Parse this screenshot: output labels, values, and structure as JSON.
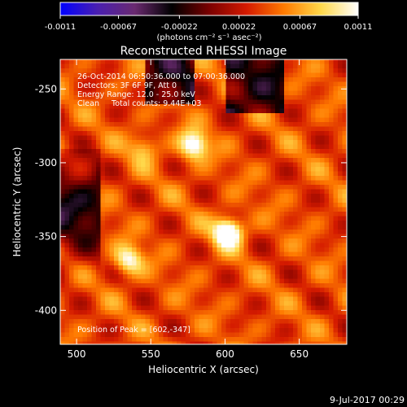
{
  "chart_data": {
    "type": "heatmap",
    "title": "Reconstructed RHESSI Image",
    "xlabel": "Heliocentric X (arcsec)",
    "ylabel": "Heliocentric Y (arcsec)",
    "xlim": [
      489,
      682
    ],
    "ylim": [
      -423,
      -230
    ],
    "x_ticks": [
      500,
      550,
      600,
      650
    ],
    "y_ticks": [
      -250,
      -300,
      -350,
      -400
    ],
    "colorbar": {
      "colors": [
        "#0000ff",
        "#4a1fb0",
        "#6a2a70",
        "#000000",
        "#7a0000",
        "#d41a00",
        "#ff7a00",
        "#ffd84a",
        "#ffffff"
      ],
      "tick_labels": [
        "-0.0011",
        "-0.00067",
        "-0.00022",
        "0.00022",
        "0.00067",
        "0.0011"
      ],
      "range": [
        -0.0011,
        0.0011
      ],
      "units": "(photons cm⁻² s⁻¹ asec⁻²)"
    },
    "annotations": [
      "26-Oct-2014 06:50:36.000 to 07:00:36.000",
      "Detectors: 3F 6F 9F, Att 0",
      "Energy Range: 12.0 - 25.0 keV",
      "Clean     Total counts: 9.44E+03"
    ],
    "peak_label": "Position of Peak = [602,-347]",
    "sources": [
      {
        "x": 602,
        "y": -347,
        "value": 0.0011
      },
      {
        "x": 579,
        "y": -288,
        "value": 0.00085
      },
      {
        "x": 535,
        "y": -366,
        "value": 0.0007
      },
      {
        "x": 545,
        "y": -290,
        "value": 0.0004
      }
    ]
  },
  "timestamp": "9-Jul-2017 00:29"
}
